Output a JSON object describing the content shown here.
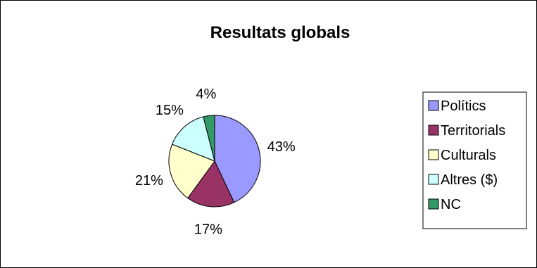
{
  "chart_data": {
    "type": "pie",
    "title": "Resultats globals",
    "categories": [
      "Polítics",
      "Territorials",
      "Culturals",
      "Altres ($)",
      "NC"
    ],
    "values": [
      43,
      17,
      21,
      15,
      4
    ],
    "labels": [
      "43%",
      "17%",
      "21%",
      "15%",
      "4%"
    ],
    "colors": [
      "#9999ff",
      "#993366",
      "#ffffcc",
      "#ccffff",
      "#339966"
    ],
    "legend_position": "right"
  }
}
